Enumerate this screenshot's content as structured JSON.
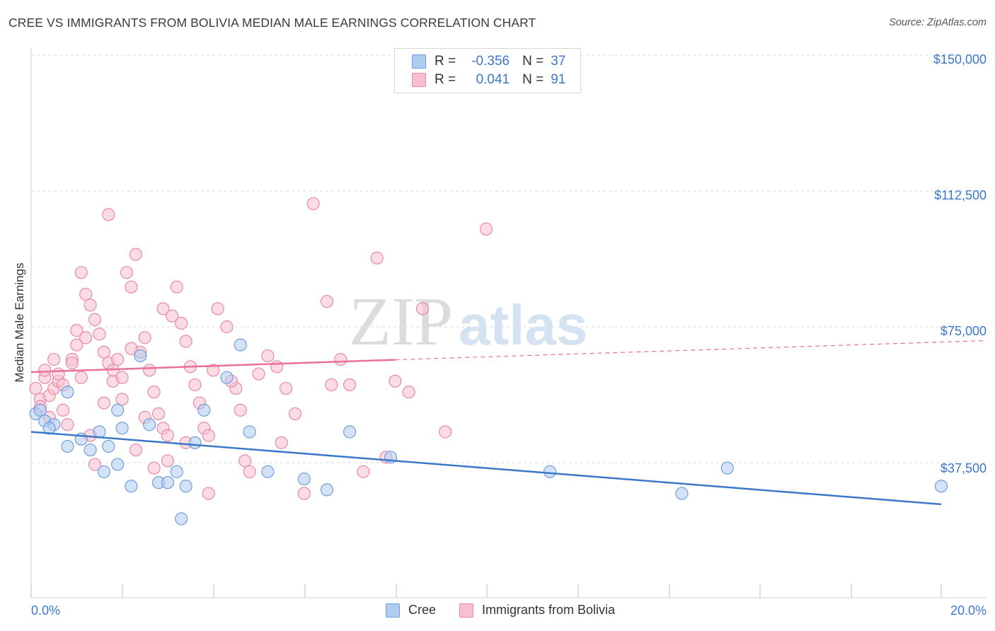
{
  "title": "CREE VS IMMIGRANTS FROM BOLIVIA MEDIAN MALE EARNINGS CORRELATION CHART",
  "source": "Source: ZipAtlas.com",
  "watermark": {
    "zip": "ZIP",
    "atlas": "atlas"
  },
  "legend": {
    "rows": [
      {
        "r_label": "R =",
        "r_value": "-0.356",
        "n_label": "N =",
        "n_value": "37",
        "fill": "#aecbf0",
        "stroke": "#6e9fdc"
      },
      {
        "r_label": "R =",
        "r_value": "0.041",
        "n_label": "N =",
        "n_value": "91",
        "fill": "#f7bfd0",
        "stroke": "#e889a8"
      }
    ]
  },
  "bottom_legend": [
    {
      "label": "Cree",
      "fill": "#aecbf0",
      "stroke": "#6e9fdc"
    },
    {
      "label": "Immigrants from Bolivia",
      "fill": "#f7bfd0",
      "stroke": "#e889a8"
    }
  ],
  "chart_data": {
    "type": "scatter",
    "title": "CREE VS IMMIGRANTS FROM BOLIVIA MEDIAN MALE EARNINGS CORRELATION CHART",
    "xlabel": "",
    "ylabel": "Median Male Earnings",
    "xlim": [
      0,
      20
    ],
    "ylim": [
      0,
      155000
    ],
    "x_tick_labels": [
      "0.0%",
      "20.0%"
    ],
    "y_ticks": [
      {
        "value": 37500,
        "label": "$37,500"
      },
      {
        "value": 75000,
        "label": "$75,000"
      },
      {
        "value": 112500,
        "label": "$112,500"
      },
      {
        "value": 150000,
        "label": "$150,000"
      }
    ],
    "series": [
      {
        "name": "Cree",
        "color": "#3b78c9",
        "fill": "#aecbf0",
        "stroke": "#6e9fdc",
        "trend": {
          "x0": 0,
          "y0": 46000,
          "x1": 20,
          "y1": 26000,
          "dash_from": null
        },
        "points": [
          [
            0.1,
            51000
          ],
          [
            0.2,
            52000
          ],
          [
            0.3,
            49000
          ],
          [
            0.5,
            48000
          ],
          [
            0.4,
            47000
          ],
          [
            0.8,
            57000
          ],
          [
            0.8,
            42000
          ],
          [
            1.1,
            44000
          ],
          [
            1.3,
            41000
          ],
          [
            1.5,
            46000
          ],
          [
            1.6,
            35000
          ],
          [
            1.7,
            42000
          ],
          [
            1.9,
            52000
          ],
          [
            2.0,
            47000
          ],
          [
            2.2,
            31000
          ],
          [
            2.6,
            48000
          ],
          [
            2.8,
            32000
          ],
          [
            3.0,
            32000
          ],
          [
            3.2,
            35000
          ],
          [
            3.4,
            31000
          ],
          [
            3.6,
            43000
          ],
          [
            3.8,
            52000
          ],
          [
            3.3,
            22000
          ],
          [
            4.6,
            70000
          ],
          [
            4.3,
            61000
          ],
          [
            2.4,
            67000
          ],
          [
            4.8,
            46000
          ],
          [
            6.0,
            33000
          ],
          [
            6.5,
            30000
          ],
          [
            7.0,
            46000
          ],
          [
            7.9,
            39000
          ],
          [
            11.4,
            35000
          ],
          [
            14.3,
            29000
          ],
          [
            15.3,
            36000
          ],
          [
            20.0,
            31000
          ],
          [
            5.2,
            35000
          ],
          [
            1.9,
            37000
          ]
        ]
      },
      {
        "name": "Immigrants from Bolivia",
        "color": "#e8709a",
        "fill": "#f7bfd0",
        "stroke": "#e889a8",
        "trend": {
          "x0": 0,
          "y0": 62500,
          "x1": 20,
          "y1": 71000,
          "dash_from": 8
        },
        "points": [
          [
            0.1,
            58000
          ],
          [
            0.2,
            55000
          ],
          [
            0.2,
            53000
          ],
          [
            0.3,
            61000
          ],
          [
            0.4,
            56000
          ],
          [
            0.5,
            58000
          ],
          [
            0.6,
            60000
          ],
          [
            0.7,
            52000
          ],
          [
            0.8,
            48000
          ],
          [
            0.6,
            62000
          ],
          [
            0.9,
            66000
          ],
          [
            1.0,
            74000
          ],
          [
            1.0,
            70000
          ],
          [
            1.2,
            72000
          ],
          [
            1.2,
            84000
          ],
          [
            1.3,
            81000
          ],
          [
            1.4,
            77000
          ],
          [
            1.5,
            73000
          ],
          [
            1.6,
            68000
          ],
          [
            1.7,
            65000
          ],
          [
            1.8,
            60000
          ],
          [
            1.9,
            66000
          ],
          [
            2.0,
            61000
          ],
          [
            2.0,
            55000
          ],
          [
            2.1,
            90000
          ],
          [
            2.2,
            86000
          ],
          [
            2.3,
            95000
          ],
          [
            2.4,
            68000
          ],
          [
            2.5,
            72000
          ],
          [
            2.6,
            63000
          ],
          [
            2.7,
            57000
          ],
          [
            2.8,
            51000
          ],
          [
            2.9,
            47000
          ],
          [
            3.0,
            45000
          ],
          [
            3.1,
            78000
          ],
          [
            3.2,
            86000
          ],
          [
            3.3,
            76000
          ],
          [
            3.4,
            71000
          ],
          [
            3.5,
            64000
          ],
          [
            3.6,
            59000
          ],
          [
            3.7,
            54000
          ],
          [
            3.8,
            47000
          ],
          [
            3.9,
            45000
          ],
          [
            4.0,
            63000
          ],
          [
            4.1,
            80000
          ],
          [
            4.3,
            75000
          ],
          [
            4.5,
            58000
          ],
          [
            4.6,
            52000
          ],
          [
            4.7,
            38000
          ],
          [
            4.8,
            35000
          ],
          [
            5.0,
            62000
          ],
          [
            5.2,
            67000
          ],
          [
            5.4,
            64000
          ],
          [
            5.6,
            58000
          ],
          [
            5.8,
            51000
          ],
          [
            6.0,
            29000
          ],
          [
            6.2,
            109000
          ],
          [
            6.5,
            82000
          ],
          [
            6.8,
            66000
          ],
          [
            7.0,
            59000
          ],
          [
            7.3,
            35000
          ],
          [
            7.6,
            94000
          ],
          [
            7.8,
            39000
          ],
          [
            8.0,
            60000
          ],
          [
            8.3,
            57000
          ],
          [
            8.6,
            80000
          ],
          [
            9.1,
            46000
          ],
          [
            10.0,
            102000
          ],
          [
            1.1,
            90000
          ],
          [
            1.7,
            106000
          ],
          [
            2.9,
            80000
          ],
          [
            3.4,
            43000
          ],
          [
            1.4,
            37000
          ],
          [
            2.2,
            69000
          ],
          [
            0.9,
            65000
          ],
          [
            0.3,
            63000
          ],
          [
            1.6,
            54000
          ],
          [
            2.3,
            41000
          ],
          [
            0.4,
            50000
          ],
          [
            1.3,
            45000
          ],
          [
            2.7,
            36000
          ],
          [
            3.9,
            29000
          ],
          [
            4.4,
            60000
          ],
          [
            5.5,
            43000
          ],
          [
            0.7,
            59000
          ],
          [
            1.8,
            63000
          ],
          [
            2.5,
            50000
          ],
          [
            3.0,
            38000
          ],
          [
            0.5,
            66000
          ],
          [
            1.1,
            61000
          ],
          [
            6.6,
            59000
          ]
        ]
      }
    ]
  }
}
